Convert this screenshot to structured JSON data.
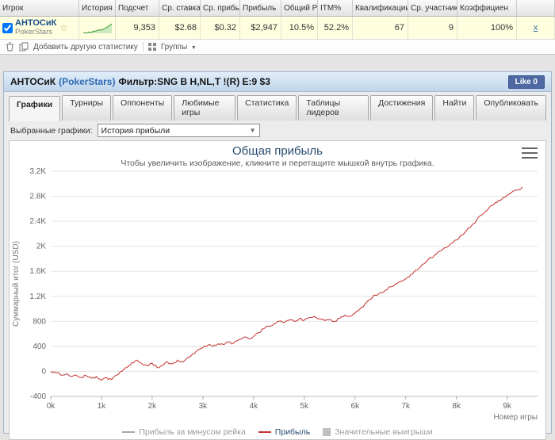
{
  "stats_table": {
    "columns": [
      "Игрок",
      "История п",
      "Подсчет",
      "Ср. ставка",
      "Ср. прибыл",
      "Прибыль",
      "Общий Р",
      "ITM%",
      "Квалификации",
      "Ср. участники",
      "Коэффициен",
      ""
    ],
    "row": {
      "player": "АНТОСиК",
      "site": "PokerStars",
      "count": "9,353",
      "avg_stake": "$2.68",
      "avg_profit": "$0.32",
      "profit": "$2,947",
      "total_roi": "10.5%",
      "itm": "52.2%",
      "qualifications": "67",
      "avg_entrants": "9",
      "coefficient": "100%",
      "remove_link": "x"
    }
  },
  "toolbar": {
    "add_stat_label": "Добавить другую статистику",
    "groups_label": "Группы"
  },
  "header": {
    "player": "АНТОСиК",
    "site": "(PokerStars)",
    "filter": "Фильтр:SNG В H,NL,T !(R) E:9 $3",
    "like_label": "Like 0"
  },
  "tabs": [
    {
      "label": "Графики",
      "active": true
    },
    {
      "label": "Турниры",
      "active": false
    },
    {
      "label": "Оппоненты",
      "active": false
    },
    {
      "label": "Любимые игры",
      "active": false
    },
    {
      "label": "Статистика",
      "active": false
    },
    {
      "label": "Таблицы лидеров",
      "active": false
    },
    {
      "label": "Достижения",
      "active": false
    },
    {
      "label": "Найти",
      "active": false
    },
    {
      "label": "Опубликовать",
      "active": false
    }
  ],
  "graph_selector": {
    "label": "Выбранные графики:",
    "value": "История прибыли"
  },
  "colors": {
    "profit_line": "#c53030",
    "sparkline_stroke": "#3d9b35",
    "sparkline_fill": "#cdeac0",
    "grid": "#e3e3e3",
    "accent_blue": "#2d6ab4"
  },
  "chart_data": {
    "type": "line",
    "title": "Общая прибыль",
    "subtitle": "Чтобы увеличить изображение, кликните и перетащите мышкой внутрь графика.",
    "ylabel": "Суммарный итог (USD)",
    "xlabel": "Номер игры",
    "ylim": [
      -400,
      3200
    ],
    "xlim": [
      0,
      9600
    ],
    "grid": true,
    "legend_position": "bottom",
    "y_ticks": [
      {
        "value": -400,
        "label": "-400"
      },
      {
        "value": 0,
        "label": "0"
      },
      {
        "value": 400,
        "label": "400"
      },
      {
        "value": 800,
        "label": "800"
      },
      {
        "value": 1200,
        "label": "1.2K"
      },
      {
        "value": 1600,
        "label": "1.6K"
      },
      {
        "value": 2000,
        "label": "2K"
      },
      {
        "value": 2400,
        "label": "2.4K"
      },
      {
        "value": 2800,
        "label": "2.8K"
      },
      {
        "value": 3200,
        "label": "3.2K"
      }
    ],
    "x_ticks": [
      {
        "value": 0,
        "label": "0k"
      },
      {
        "value": 1000,
        "label": "1k"
      },
      {
        "value": 2000,
        "label": "2k"
      },
      {
        "value": 3000,
        "label": "3k"
      },
      {
        "value": 4000,
        "label": "4k"
      },
      {
        "value": 5000,
        "label": "5k"
      },
      {
        "value": 6000,
        "label": "6k"
      },
      {
        "value": 7000,
        "label": "7k"
      },
      {
        "value": 8000,
        "label": "8k"
      },
      {
        "value": 9000,
        "label": "9k"
      }
    ],
    "legend": [
      {
        "label": "Прибыль за минусом рейка",
        "color": "#a6a6a6",
        "type": "line",
        "enabled": false
      },
      {
        "label": "Прибыль",
        "color": "#c53030",
        "type": "line",
        "enabled": true
      },
      {
        "label": "Значительные выигрыши",
        "color": "#bfbfbf",
        "type": "box",
        "enabled": false
      }
    ],
    "series": [
      {
        "name": "Прибыль",
        "color": "#c53030",
        "x_start": 0,
        "x_step": 100,
        "y": [
          0,
          -20,
          -60,
          -40,
          -80,
          -60,
          -100,
          -70,
          -110,
          -80,
          -140,
          -100,
          -130,
          -60,
          0,
          60,
          140,
          180,
          120,
          90,
          130,
          60,
          90,
          150,
          120,
          180,
          150,
          220,
          280,
          340,
          380,
          420,
          400,
          440,
          430,
          470,
          450,
          500,
          540,
          520,
          560,
          620,
          680,
          720,
          760,
          800,
          780,
          820,
          800,
          840,
          820,
          860,
          880,
          840,
          810,
          830,
          800,
          850,
          900,
          880,
          930,
          1000,
          1080,
          1150,
          1220,
          1260,
          1300,
          1350,
          1400,
          1440,
          1480,
          1550,
          1620,
          1680,
          1750,
          1820,
          1870,
          1930,
          1980,
          2050,
          2100,
          2180,
          2250,
          2330,
          2420,
          2500,
          2570,
          2650,
          2700,
          2760,
          2820,
          2870,
          2900,
          2947
        ]
      }
    ]
  }
}
